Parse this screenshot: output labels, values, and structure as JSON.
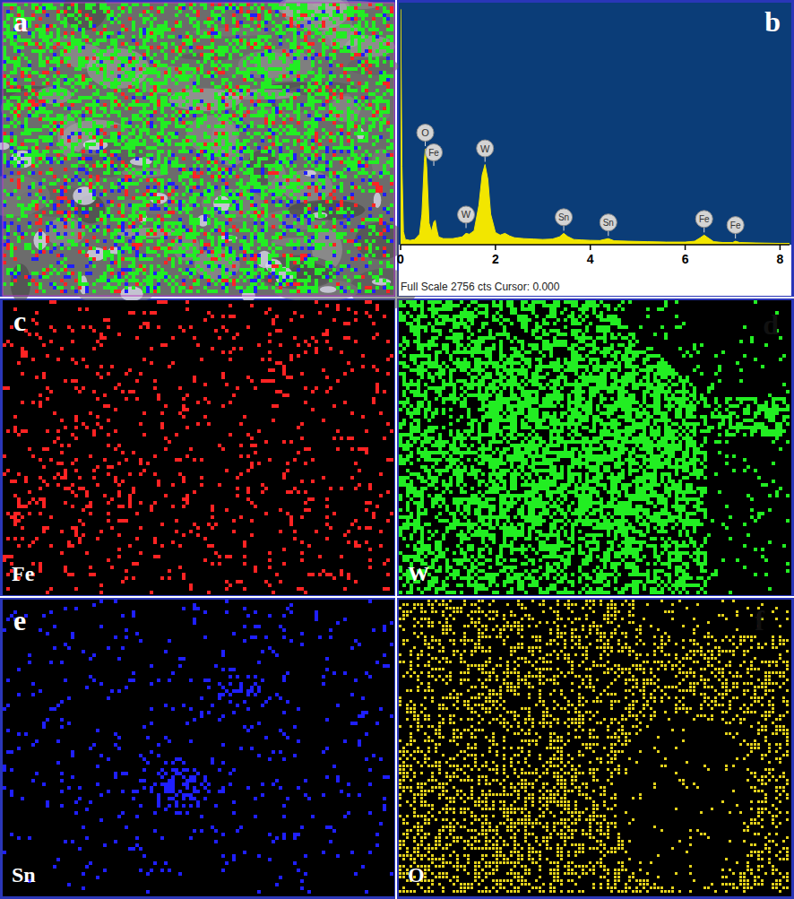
{
  "chart_data": {
    "type": "line",
    "caption": "Full Scale 2756 cts Cursor: 0.000",
    "x": [
      0,
      0.03,
      0.06,
      0.1,
      0.2,
      0.3,
      0.4,
      0.45,
      0.5,
      0.52,
      0.55,
      0.6,
      0.65,
      0.7,
      0.73,
      0.76,
      0.8,
      0.9,
      1.0,
      1.1,
      1.2,
      1.3,
      1.38,
      1.45,
      1.55,
      1.65,
      1.72,
      1.78,
      1.84,
      1.9,
      2.0,
      2.1,
      2.2,
      2.3,
      2.4,
      2.6,
      2.8,
      3.0,
      3.2,
      3.35,
      3.44,
      3.52,
      3.65,
      3.8,
      4.0,
      4.2,
      4.38,
      4.5,
      4.8,
      5.2,
      5.6,
      6.0,
      6.2,
      6.32,
      6.4,
      6.48,
      6.6,
      6.8,
      7.0,
      7.06,
      7.15,
      7.5,
      8.0,
      8.2
    ],
    "values": [
      2700,
      900,
      150,
      60,
      50,
      60,
      120,
      350,
      950,
      1100,
      900,
      250,
      150,
      260,
      280,
      180,
      90,
      70,
      70,
      70,
      80,
      90,
      130,
      120,
      160,
      450,
      800,
      920,
      750,
      350,
      140,
      110,
      130,
      100,
      80,
      70,
      65,
      60,
      65,
      90,
      130,
      95,
      60,
      55,
      50,
      48,
      70,
      45,
      40,
      35,
      30,
      30,
      40,
      80,
      110,
      80,
      35,
      25,
      25,
      40,
      25,
      20,
      15,
      15
    ],
    "color": "#f2e600",
    "xlim": [
      0,
      8.2
    ],
    "xticks": [
      0,
      2,
      4,
      6,
      8
    ],
    "ylim": [
      0,
      2756
    ],
    "tick_labels": "x",
    "annotations": [
      {
        "text": "O",
        "x": 0.52
      },
      {
        "text": "Fe",
        "x": 0.7
      },
      {
        "text": "W",
        "x": 1.38
      },
      {
        "text": "W",
        "x": 1.78
      },
      {
        "text": "Sn",
        "x": 3.44
      },
      {
        "text": "Sn",
        "x": 4.38
      },
      {
        "text": "Fe",
        "x": 6.4
      },
      {
        "text": "Fe",
        "x": 7.06
      }
    ]
  },
  "panel_labels": [
    "a",
    "b",
    "c",
    "d",
    "e",
    "f"
  ],
  "maps": [
    {
      "element": "Fe",
      "color": "#ff2323"
    },
    {
      "element": "W",
      "color": "#22ee22"
    },
    {
      "element": "Sn",
      "color": "#1f1fff"
    },
    {
      "element": "O",
      "color": "#e3d21c"
    }
  ]
}
